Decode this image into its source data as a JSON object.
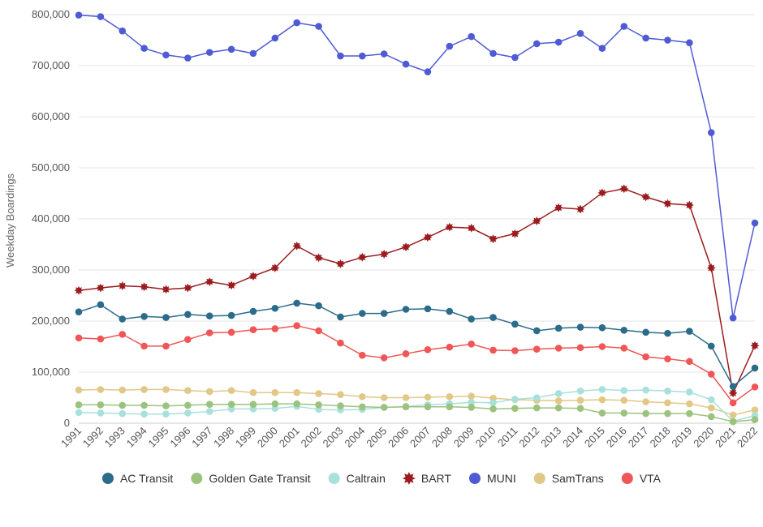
{
  "chart_data": {
    "type": "line",
    "title": "",
    "xlabel": "",
    "ylabel": "Weekday Boardings",
    "ylim": [
      0,
      800000
    ],
    "yticks": [
      "0",
      "100,000",
      "200,000",
      "300,000",
      "400,000",
      "500,000",
      "600,000",
      "700,000",
      "800,000"
    ],
    "grid": true,
    "legend_position": "bottom",
    "x": [
      "1991",
      "1992",
      "1993",
      "1994",
      "1995",
      "1996",
      "1997",
      "1998",
      "1999",
      "2000",
      "2001",
      "2002",
      "2003",
      "2004",
      "2005",
      "2006",
      "2007",
      "2008",
      "2009",
      "2010",
      "2011",
      "2012",
      "2013",
      "2014",
      "2015",
      "2016",
      "2017",
      "2018",
      "2019",
      "2020",
      "2021",
      "2022"
    ],
    "series": [
      {
        "name": "AC Transit",
        "color": "#2c6b8a",
        "marker": "circle",
        "values": [
          218000,
          232000,
          204000,
          209000,
          207000,
          213000,
          210000,
          211000,
          219000,
          225000,
          235000,
          230000,
          208000,
          215000,
          215000,
          223000,
          224000,
          219000,
          204000,
          207000,
          194000,
          181000,
          186000,
          188000,
          187000,
          182000,
          178000,
          176000,
          180000,
          151000,
          72000,
          108000
        ]
      },
      {
        "name": "Golden Gate Transit",
        "color": "#9bc37e",
        "marker": "circle",
        "values": [
          36000,
          36000,
          35000,
          35000,
          34000,
          35000,
          37000,
          37000,
          37000,
          38000,
          38000,
          36000,
          34000,
          32000,
          31000,
          32000,
          32000,
          32000,
          31000,
          28000,
          29000,
          30000,
          30000,
          29000,
          20000,
          20000,
          19000,
          19000,
          19000,
          13000,
          3000,
          7000
        ]
      },
      {
        "name": "Caltrain",
        "color": "#a8e0dc",
        "marker": "circle",
        "values": [
          21000,
          20000,
          19000,
          18000,
          18000,
          20000,
          23000,
          28000,
          28000,
          29000,
          33000,
          27000,
          26000,
          27000,
          31000,
          33000,
          36000,
          38000,
          41000,
          40000,
          47000,
          50000,
          58000,
          63000,
          66000,
          64000,
          65000,
          63000,
          61000,
          46000,
          4000,
          15000
        ]
      },
      {
        "name": "BART",
        "color": "#9b1b1e",
        "marker": "star",
        "values": [
          260000,
          265000,
          269000,
          267000,
          262000,
          265000,
          277000,
          270000,
          288000,
          304000,
          347000,
          324000,
          312000,
          325000,
          331000,
          345000,
          364000,
          384000,
          382000,
          361000,
          371000,
          396000,
          422000,
          419000,
          451000,
          459000,
          443000,
          430000,
          427000,
          304000,
          59000,
          152000
        ]
      },
      {
        "name": "MUNI",
        "color": "#4f5bd5",
        "marker": "circle",
        "values": [
          799000,
          796000,
          768000,
          734000,
          721000,
          715000,
          726000,
          732000,
          724000,
          754000,
          784000,
          777000,
          719000,
          719000,
          723000,
          703000,
          688000,
          738000,
          757000,
          724000,
          716000,
          743000,
          746000,
          763000,
          734000,
          777000,
          754000,
          750000,
          745000,
          569000,
          206000,
          392000
        ]
      },
      {
        "name": "SamTrans",
        "color": "#e2c886",
        "marker": "circle",
        "values": [
          65000,
          66000,
          65000,
          66000,
          66000,
          64000,
          62000,
          64000,
          60000,
          60000,
          60000,
          58000,
          56000,
          52000,
          50000,
          50000,
          51000,
          52000,
          53000,
          49000,
          46000,
          45000,
          44000,
          45000,
          46000,
          45000,
          42000,
          40000,
          38000,
          30000,
          16000,
          26000
        ]
      },
      {
        "name": "VTA",
        "color": "#f05656",
        "marker": "circle",
        "values": [
          167000,
          165000,
          174000,
          151000,
          151000,
          164000,
          177000,
          178000,
          183000,
          185000,
          191000,
          181000,
          157000,
          133000,
          128000,
          136000,
          144000,
          149000,
          155000,
          143000,
          142000,
          145000,
          147000,
          148000,
          150000,
          147000,
          130000,
          126000,
          121000,
          96000,
          40000,
          71000
        ]
      }
    ]
  }
}
